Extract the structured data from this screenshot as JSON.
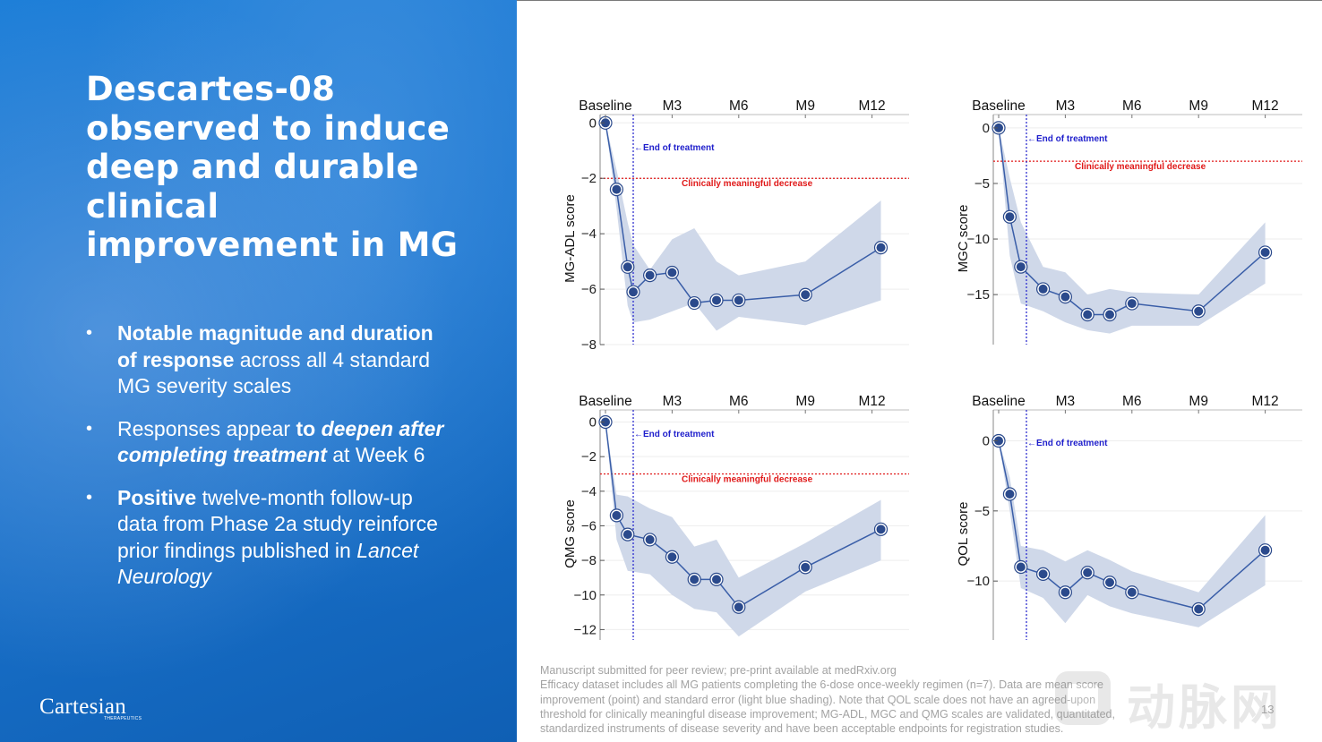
{
  "slide": {
    "title": "Descartes-08 observed to induce deep and durable clinical improvement in MG",
    "bullets": [
      [
        {
          "t": "Notable magnitude and duration of response",
          "b": true
        },
        {
          "t": " across all 4 standard MG severity scales"
        }
      ],
      [
        {
          "t": "Responses appear "
        },
        {
          "t": "to ",
          "b": true
        },
        {
          "t": "deepen after completing treatment",
          "b": true,
          "i": true
        },
        {
          "t": " at Week 6"
        }
      ],
      [
        {
          "t": "Positive",
          "b": true
        },
        {
          "t": " twelve-month follow-up data from Phase 2a study reinforce prior findings published in "
        },
        {
          "t": "Lancet Neurology",
          "i": true
        }
      ]
    ],
    "logo_text": "Cartesian",
    "logo_subtext": "THERAPEUTICS",
    "page_number": "13"
  },
  "footer": {
    "lines": [
      "Manuscript submitted for peer review; pre-print available at medRxiv.org",
      "Efficacy dataset includes all MG patients completing the 6-dose once-weekly regimen (n=7). Data are mean score",
      "improvement (point) and standard error (light blue shading).  Note that QOL scale does not have an agreed-upon",
      "threshold for clinically meaningful disease improvement; MG-ADL, MGC and QMG scales are validated, quantitated,",
      "standardized instruments of disease severity and have been acceptable endpoints for registration studies."
    ]
  },
  "watermark": {
    "text": "动脉网"
  },
  "colors": {
    "band": "#cfd8e9",
    "line": "#3a5ea8",
    "point": "#2b4a8c",
    "eot": "#1f1fcc",
    "clin": "#e01818"
  },
  "chart_data": [
    {
      "type": "line",
      "ylabel": "MG-ADL score",
      "top_ticks": [
        "Baseline",
        "M3",
        "M6",
        "M9",
        "M12"
      ],
      "top_tick_months": [
        0,
        3,
        6,
        9,
        12
      ],
      "ylim": [
        -8,
        0.3
      ],
      "yticks": [
        0,
        -2,
        -4,
        -6,
        -8
      ],
      "x_months": [
        0,
        0.5,
        1,
        1.25,
        2,
        3,
        4,
        5,
        6,
        9,
        12.4
      ],
      "values": [
        0,
        -2.4,
        -5.2,
        -6.1,
        -5.5,
        -5.4,
        -6.5,
        -6.4,
        -6.4,
        -6.2,
        -4.5
      ],
      "se_upper": [
        0,
        -1.7,
        -3.6,
        -4.4,
        -5.3,
        -4.2,
        -3.8,
        -5.0,
        -5.5,
        -5.0,
        -2.8
      ],
      "se_lower": [
        0,
        -3.1,
        -6.6,
        -7.2,
        -7.1,
        -6.8,
        -6.5,
        -7.5,
        -7.0,
        -7.3,
        -6.4
      ],
      "end_of_treatment_month": 1.25,
      "end_of_treatment_label": "←End of treatment",
      "threshold": -2,
      "threshold_label": "Clinically meaningful decrease"
    },
    {
      "type": "line",
      "ylabel": "MGC score",
      "top_ticks": [
        "Baseline",
        "M3",
        "M6",
        "M9",
        "M12"
      ],
      "top_tick_months": [
        0,
        3,
        6,
        9,
        12
      ],
      "ylim": [
        -19.5,
        1.2
      ],
      "yticks": [
        0,
        -5,
        -10,
        -15
      ],
      "x_months": [
        0,
        0.5,
        1,
        2,
        3,
        4,
        5,
        6,
        9,
        12
      ],
      "values": [
        0,
        -8,
        -12.5,
        -14.5,
        -15.2,
        -16.8,
        -16.8,
        -15.8,
        -16.5,
        -11.2
      ],
      "se_upper": [
        0,
        -4.5,
        -8.5,
        -12.5,
        -13,
        -15,
        -14.5,
        -14.8,
        -15,
        -8.5
      ],
      "se_lower": [
        0,
        -11.5,
        -15.8,
        -16.5,
        -17.5,
        -18.2,
        -18.5,
        -17.8,
        -17.8,
        -14.0
      ],
      "end_of_treatment_month": 1.25,
      "end_of_treatment_label": "←End of treatment",
      "threshold": -3,
      "threshold_label": "Clinically meaningful decrease"
    },
    {
      "type": "line",
      "ylabel": "QMG score",
      "top_ticks": [
        "Baseline",
        "M3",
        "M6",
        "M9",
        "M12"
      ],
      "top_tick_months": [
        0,
        3,
        6,
        9,
        12
      ],
      "ylim": [
        -12.6,
        0.7
      ],
      "yticks": [
        0,
        -2,
        -4,
        -6,
        -8,
        -10,
        -12
      ],
      "x_months": [
        0,
        0.5,
        1,
        2,
        3,
        4,
        5,
        6,
        9,
        12.4
      ],
      "values": [
        0,
        -5.4,
        -6.5,
        -6.8,
        -7.8,
        -9.1,
        -9.1,
        -10.7,
        -8.4,
        -6.2
      ],
      "se_upper": [
        0,
        -4.2,
        -4.3,
        -5.0,
        -5.5,
        -7.2,
        -6.8,
        -9.0,
        -7.0,
        -4.5
      ],
      "se_lower": [
        0,
        -6.8,
        -8.6,
        -8.8,
        -10.0,
        -10.8,
        -11.0,
        -12.4,
        -9.8,
        -8.0
      ],
      "end_of_treatment_month": 1.25,
      "end_of_treatment_label": "←End of treatment",
      "threshold": -3,
      "threshold_label": "Clinically meaningful decrease"
    },
    {
      "type": "line",
      "ylabel": "QOL score",
      "top_ticks": [
        "Baseline",
        "M3",
        "M6",
        "M9",
        "M12"
      ],
      "top_tick_months": [
        0,
        3,
        6,
        9,
        12
      ],
      "ylim": [
        -14.2,
        2.2
      ],
      "yticks": [
        0,
        -5,
        -10
      ],
      "x_months": [
        0,
        0.5,
        1,
        2,
        3,
        4,
        5,
        6,
        9,
        12
      ],
      "values": [
        0,
        -3.8,
        -9.0,
        -9.5,
        -10.8,
        -9.4,
        -10.1,
        -10.8,
        -12.0,
        -7.8
      ],
      "se_upper": [
        0,
        -2.6,
        -7.5,
        -7.8,
        -8.6,
        -7.8,
        -8.5,
        -9.3,
        -10.8,
        -5.3
      ],
      "se_lower": [
        0,
        -5.0,
        -10.5,
        -11.2,
        -13.0,
        -11.0,
        -11.8,
        -12.3,
        -13.3,
        -10.3
      ],
      "end_of_treatment_month": 1.25,
      "end_of_treatment_label": "←End of treatment"
    }
  ]
}
